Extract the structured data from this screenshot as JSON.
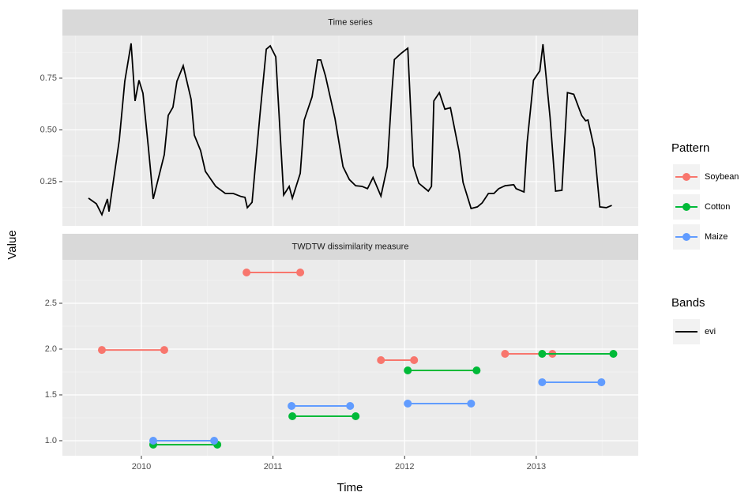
{
  "axes": {
    "x_label": "Time",
    "y_label": "Value",
    "xlim": [
      2009.4,
      2013.775
    ],
    "xticks": [
      2010,
      2011,
      2012,
      2013
    ]
  },
  "legends": {
    "pattern_title": "Pattern",
    "bands_title": "Bands"
  },
  "chart_data": [
    {
      "type": "line",
      "title": "Time series",
      "x": [
        2009.598,
        2009.658,
        2009.7,
        2009.742,
        2009.754,
        2009.832,
        2009.874,
        2009.922,
        2009.952,
        2009.982,
        2010.012,
        2010.054,
        2010.09,
        2010.174,
        2010.204,
        2010.24,
        2010.27,
        2010.318,
        2010.378,
        2010.402,
        2010.45,
        2010.486,
        2010.565,
        2010.637,
        2010.667,
        2010.697,
        2010.757,
        2010.787,
        2010.805,
        2010.841,
        2010.901,
        2010.949,
        2010.979,
        2011.021,
        2011.081,
        2011.123,
        2011.147,
        2011.207,
        2011.237,
        2011.297,
        2011.339,
        2011.363,
        2011.399,
        2011.471,
        2011.532,
        2011.58,
        2011.628,
        2011.676,
        2011.718,
        2011.76,
        2011.82,
        2011.868,
        2011.904,
        2011.922,
        2011.97,
        2012.024,
        2012.066,
        2012.108,
        2012.18,
        2012.204,
        2012.222,
        2012.264,
        2012.306,
        2012.348,
        2012.414,
        2012.444,
        2012.505,
        2012.553,
        2012.589,
        2012.637,
        2012.679,
        2012.715,
        2012.763,
        2012.829,
        2012.847,
        2012.907,
        2012.931,
        2012.979,
        2013.027,
        2013.051,
        2013.105,
        2013.147,
        2013.195,
        2013.237,
        2013.285,
        2013.345,
        2013.375,
        2013.393,
        2013.441,
        2013.483,
        2013.532,
        2013.574
      ],
      "series": [
        {
          "name": "evi",
          "color": "#000000",
          "values": [
            0.17,
            0.143,
            0.09,
            0.166,
            0.105,
            0.45,
            0.735,
            0.918,
            0.64,
            0.74,
            0.677,
            0.41,
            0.166,
            0.38,
            0.57,
            0.61,
            0.735,
            0.81,
            0.647,
            0.475,
            0.4,
            0.3,
            0.227,
            0.193,
            0.193,
            0.193,
            0.178,
            0.174,
            0.124,
            0.15,
            0.574,
            0.89,
            0.906,
            0.853,
            0.185,
            0.227,
            0.17,
            0.29,
            0.547,
            0.66,
            0.838,
            0.838,
            0.76,
            0.555,
            0.322,
            0.26,
            0.23,
            0.227,
            0.216,
            0.27,
            0.18,
            0.322,
            0.69,
            0.84,
            0.868,
            0.895,
            0.326,
            0.242,
            0.204,
            0.227,
            0.64,
            0.68,
            0.6,
            0.607,
            0.395,
            0.246,
            0.12,
            0.128,
            0.147,
            0.193,
            0.193,
            0.216,
            0.23,
            0.235,
            0.216,
            0.2,
            0.44,
            0.74,
            0.785,
            0.914,
            0.56,
            0.204,
            0.208,
            0.68,
            0.672,
            0.57,
            0.544,
            0.548,
            0.41,
            0.128,
            0.124,
            0.135
          ]
        }
      ],
      "ylim": [
        0.036,
        0.956
      ],
      "yticks": [
        0.25,
        {
          "value": 0.5,
          "label": "0.50"
        },
        0.75
      ]
    },
    {
      "type": "interval",
      "title": "TWDTW dissimilarity measure",
      "series": [
        {
          "name": "Soybean",
          "color": "#F8766D",
          "from": [
            2009.7,
            2010.799,
            2011.82,
            2012.763
          ],
          "to": [
            2010.174,
            2011.207,
            2012.072,
            2013.123
          ],
          "values": [
            1.99,
            2.836,
            1.879,
            1.948
          ]
        },
        {
          "name": "Cotton",
          "color": "#00BA38",
          "from": [
            2010.09,
            2011.147,
            2012.024,
            2013.045
          ],
          "to": [
            2010.577,
            2011.628,
            2012.547,
            2013.586
          ],
          "values": [
            0.957,
            1.267,
            1.767,
            1.948
          ]
        },
        {
          "name": "Maize",
          "color": "#619CFF",
          "from": [
            2010.09,
            2011.141,
            2012.024,
            2013.045
          ],
          "to": [
            2010.553,
            2011.586,
            2012.505,
            2013.495
          ],
          "values": [
            1.0,
            1.379,
            1.405,
            1.638
          ]
        }
      ],
      "ylim": [
        0.836,
        2.974
      ],
      "yticks": [
        {
          "value": 1.0,
          "label": "1.0"
        },
        1.5,
        {
          "value": 2.0,
          "label": "2.0"
        },
        2.5
      ]
    }
  ]
}
